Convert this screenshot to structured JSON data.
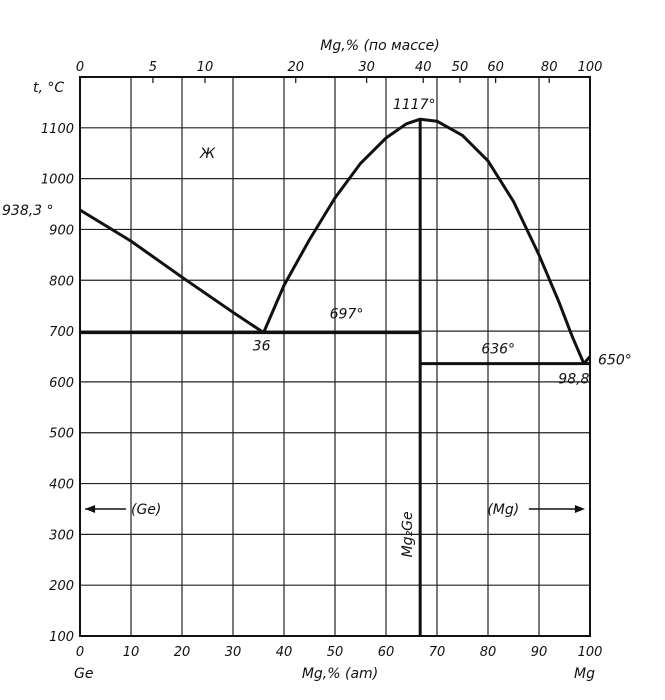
{
  "chart_data": {
    "type": "phase-diagram",
    "top_axis": {
      "title": "Mg,% (по массе)",
      "ticks": [
        {
          "label": "0",
          "at": 0
        },
        {
          "label": "5",
          "at": 14.3
        },
        {
          "label": "10",
          "at": 24.5
        },
        {
          "label": "20",
          "at": 42.3
        },
        {
          "label": "30",
          "at": 56.2
        },
        {
          "label": "40",
          "at": 67.3
        },
        {
          "label": "50",
          "at": 74.5
        },
        {
          "label": "60",
          "at": 81.5
        },
        {
          "label": "80",
          "at": 92.0
        },
        {
          "label": "100",
          "at": 100
        }
      ]
    },
    "x_axis": {
      "title": "Mg,% (am)",
      "range": [
        0,
        100
      ],
      "ticks": [
        "0",
        "10",
        "20",
        "30",
        "40",
        "50",
        "60",
        "70",
        "80",
        "90",
        "100"
      ],
      "left_label": "Ge",
      "right_label": "Mg"
    },
    "y_axis": {
      "title": "t, °C",
      "range": [
        100,
        1200
      ],
      "ticks": [
        "100",
        "200",
        "300",
        "400",
        "500",
        "600",
        "700",
        "800",
        "900",
        "1000",
        "1100"
      ]
    },
    "grid": true,
    "liquidus": [
      {
        "name": "",
        "points": [
          [
            0,
            938.3
          ],
          [
            10,
            877
          ],
          [
            20,
            806
          ],
          [
            30,
            737
          ],
          [
            36,
            697
          ]
        ]
      },
      {
        "name": "",
        "points": [
          [
            36,
            697
          ],
          [
            40,
            790
          ],
          [
            45,
            880
          ],
          [
            50,
            962
          ],
          [
            55,
            1030
          ],
          [
            60,
            1080
          ],
          [
            64,
            1108
          ],
          [
            66.7,
            1117
          ],
          [
            70,
            1113
          ],
          [
            75,
            1085
          ],
          [
            80,
            1035
          ],
          [
            85,
            955
          ],
          [
            90,
            850
          ],
          [
            94,
            755
          ],
          [
            96.5,
            690
          ],
          [
            98.8,
            636
          ]
        ]
      },
      {
        "name": "",
        "points": [
          [
            98.8,
            636
          ],
          [
            100,
            650
          ]
        ]
      }
    ],
    "eutectics": [
      {
        "temp_label": "697°",
        "temp": 697,
        "x_from": 0,
        "x_to": 66.7,
        "comp_label": "36",
        "comp": 36
      },
      {
        "temp_label": "636°",
        "temp": 636,
        "x_from": 66.7,
        "x_to": 100,
        "comp_label": "98,8",
        "comp": 98.8
      }
    ],
    "compound": {
      "label": "Mg₂Ge",
      "x": 66.7,
      "melting_label": "1117°",
      "melting": 1117
    },
    "melting_points": {
      "Ge_label": "938,3 °",
      "Ge": 938.3,
      "Mg_label": "650°",
      "Mg": 650
    },
    "regions": {
      "liquid": "Ж",
      "left_solid": "(Ge)",
      "right_solid": "(Mg)"
    }
  }
}
